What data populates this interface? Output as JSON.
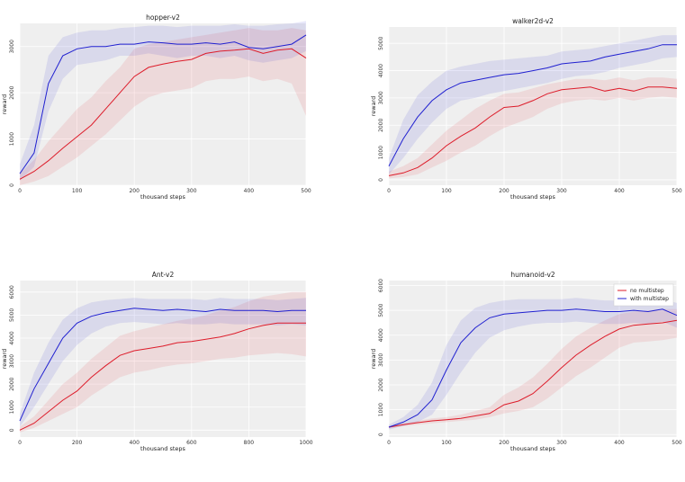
{
  "chart_data": [
    {
      "type": "line",
      "title": "hopper-v2",
      "xlabel": "thousand steps",
      "ylabel": "reward",
      "xlim": [
        0,
        500
      ],
      "ylim": [
        0,
        3500
      ],
      "xticks": [
        0,
        100,
        200,
        300,
        400,
        500
      ],
      "yticks": [
        0,
        1000,
        2000,
        3000
      ],
      "grid": true,
      "series": [
        {
          "color": "#dd1c2a",
          "x": [
            0,
            25,
            50,
            75,
            100,
            125,
            150,
            175,
            200,
            225,
            250,
            275,
            300,
            325,
            350,
            375,
            400,
            425,
            450,
            475,
            500
          ],
          "values": [
            130,
            300,
            530,
            800,
            1050,
            1300,
            1650,
            2000,
            2350,
            2550,
            2620,
            2680,
            2720,
            2850,
            2900,
            2920,
            2950,
            2850,
            2920,
            2950,
            2750
          ],
          "band_low": [
            0,
            80,
            200,
            400,
            600,
            850,
            1100,
            1400,
            1700,
            1900,
            2000,
            2050,
            2100,
            2250,
            2300,
            2300,
            2350,
            2250,
            2300,
            2200,
            1500
          ],
          "band_high": [
            250,
            550,
            950,
            1300,
            1650,
            1900,
            2250,
            2550,
            2950,
            3050,
            3100,
            3150,
            3200,
            3250,
            3300,
            3350,
            3400,
            3350,
            3350,
            3400,
            3350
          ]
        },
        {
          "color": "#2020d0",
          "x": [
            0,
            25,
            50,
            75,
            100,
            125,
            150,
            175,
            200,
            225,
            250,
            275,
            300,
            325,
            350,
            375,
            400,
            425,
            450,
            475,
            500
          ],
          "values": [
            250,
            700,
            2200,
            2800,
            2950,
            3000,
            3000,
            3050,
            3050,
            3100,
            3080,
            3050,
            3050,
            3080,
            3050,
            3100,
            2980,
            2950,
            3000,
            3050,
            3250
          ],
          "band_low": [
            100,
            400,
            1600,
            2300,
            2600,
            2650,
            2700,
            2800,
            2800,
            2850,
            2800,
            2750,
            2800,
            2800,
            2750,
            2800,
            2700,
            2650,
            2700,
            2750,
            2900
          ],
          "band_high": [
            450,
            1300,
            2800,
            3200,
            3300,
            3350,
            3350,
            3400,
            3420,
            3450,
            3450,
            3420,
            3450,
            3450,
            3450,
            3480,
            3450,
            3450,
            3480,
            3500,
            3550
          ]
        }
      ]
    },
    {
      "type": "line",
      "title": "walker2d-v2",
      "xlabel": "thousand steps",
      "ylabel": "reward",
      "xlim": [
        0,
        500
      ],
      "ylim": [
        -200,
        5600
      ],
      "xticks": [
        0,
        100,
        200,
        300,
        400,
        500
      ],
      "yticks": [
        0,
        1000,
        2000,
        3000,
        4000,
        5000
      ],
      "grid": true,
      "series": [
        {
          "color": "#dd1c2a",
          "x": [
            0,
            25,
            50,
            75,
            100,
            125,
            150,
            175,
            200,
            225,
            250,
            275,
            300,
            325,
            350,
            375,
            400,
            425,
            450,
            475,
            500
          ],
          "values": [
            150,
            250,
            450,
            800,
            1250,
            1600,
            1900,
            2300,
            2650,
            2700,
            2900,
            3150,
            3300,
            3350,
            3400,
            3250,
            3350,
            3250,
            3400,
            3400,
            3350
          ],
          "band_low": [
            50,
            100,
            200,
            450,
            700,
            1000,
            1250,
            1600,
            1900,
            2100,
            2300,
            2600,
            2800,
            2900,
            2950,
            2900,
            3000,
            2900,
            3000,
            3050,
            3000
          ],
          "band_high": [
            300,
            500,
            800,
            1300,
            1800,
            2200,
            2600,
            2900,
            3150,
            3200,
            3350,
            3500,
            3600,
            3700,
            3700,
            3650,
            3750,
            3650,
            3750,
            3750,
            3700
          ]
        },
        {
          "color": "#2020d0",
          "x": [
            0,
            25,
            50,
            75,
            100,
            125,
            150,
            175,
            200,
            225,
            250,
            275,
            300,
            325,
            350,
            375,
            400,
            425,
            450,
            475,
            500
          ],
          "values": [
            500,
            1500,
            2300,
            2900,
            3300,
            3550,
            3650,
            3750,
            3850,
            3900,
            4000,
            4100,
            4250,
            4300,
            4350,
            4500,
            4600,
            4700,
            4800,
            4950,
            4950
          ],
          "band_low": [
            200,
            800,
            1500,
            2100,
            2600,
            2900,
            3000,
            3150,
            3250,
            3350,
            3450,
            3550,
            3700,
            3800,
            3850,
            3950,
            4100,
            4200,
            4300,
            4450,
            4500
          ],
          "band_high": [
            800,
            2200,
            3100,
            3600,
            4000,
            4150,
            4250,
            4350,
            4400,
            4450,
            4500,
            4550,
            4700,
            4750,
            4800,
            4900,
            5000,
            5100,
            5200,
            5300,
            5300
          ]
        }
      ]
    },
    {
      "type": "line",
      "title": "Ant-v2",
      "xlabel": "thousand steps",
      "ylabel": "reward",
      "xlim": [
        0,
        1000
      ],
      "ylim": [
        -300,
        6500
      ],
      "xticks": [
        0,
        200,
        400,
        600,
        800,
        1000
      ],
      "yticks": [
        0,
        1000,
        2000,
        3000,
        4000,
        5000,
        6000
      ],
      "grid": true,
      "series": [
        {
          "color": "#dd1c2a",
          "x": [
            0,
            50,
            100,
            150,
            200,
            250,
            300,
            350,
            400,
            450,
            500,
            550,
            600,
            650,
            700,
            750,
            800,
            850,
            900,
            950,
            1000
          ],
          "values": [
            0,
            300,
            800,
            1300,
            1700,
            2300,
            2800,
            3250,
            3450,
            3550,
            3650,
            3800,
            3850,
            3950,
            4050,
            4200,
            4400,
            4550,
            4650,
            4650,
            4650
          ],
          "band_low": [
            -100,
            100,
            400,
            700,
            1000,
            1500,
            1900,
            2300,
            2500,
            2600,
            2750,
            2850,
            2900,
            3000,
            3100,
            3150,
            3250,
            3300,
            3350,
            3300,
            3200
          ],
          "band_high": [
            150,
            600,
            1300,
            2000,
            2500,
            3100,
            3600,
            4100,
            4300,
            4450,
            4600,
            4750,
            4850,
            5000,
            5200,
            5350,
            5600,
            5800,
            5900,
            6000,
            6000
          ]
        },
        {
          "color": "#2020d0",
          "x": [
            0,
            50,
            100,
            150,
            200,
            250,
            300,
            350,
            400,
            450,
            500,
            550,
            600,
            650,
            700,
            750,
            800,
            850,
            900,
            950,
            1000
          ],
          "values": [
            400,
            1800,
            2900,
            4000,
            4650,
            4950,
            5100,
            5200,
            5300,
            5250,
            5200,
            5250,
            5200,
            5150,
            5250,
            5200,
            5200,
            5200,
            5150,
            5200,
            5200
          ],
          "band_low": [
            150,
            1000,
            2000,
            3000,
            3700,
            4200,
            4500,
            4650,
            4700,
            4650,
            4600,
            4650,
            4600,
            4600,
            4650,
            4600,
            4600,
            4600,
            4550,
            4600,
            4550
          ],
          "band_high": [
            700,
            2500,
            3800,
            4800,
            5300,
            5550,
            5650,
            5700,
            5750,
            5700,
            5700,
            5700,
            5700,
            5650,
            5750,
            5700,
            5700,
            5700,
            5650,
            5700,
            5750
          ]
        }
      ]
    },
    {
      "type": "line",
      "title": "humanoid-v2",
      "xlabel": "thousand steps",
      "ylabel": "reward",
      "xlim": [
        0,
        500
      ],
      "ylim": [
        -100,
        6200
      ],
      "xticks": [
        0,
        100,
        200,
        300,
        400,
        500
      ],
      "yticks": [
        0,
        1000,
        2000,
        3000,
        4000,
        5000,
        6000
      ],
      "grid": true,
      "legend": "top-right",
      "series": [
        {
          "name": "no multistep",
          "color": "#dd1c2a",
          "x": [
            0,
            25,
            50,
            75,
            100,
            125,
            150,
            175,
            200,
            225,
            250,
            275,
            300,
            325,
            350,
            375,
            400,
            425,
            450,
            475,
            500
          ],
          "values": [
            300,
            400,
            480,
            550,
            600,
            650,
            750,
            850,
            1200,
            1350,
            1650,
            2150,
            2700,
            3200,
            3600,
            3950,
            4250,
            4400,
            4450,
            4500,
            4600
          ],
          "band_low": [
            250,
            330,
            400,
            450,
            500,
            550,
            600,
            700,
            850,
            950,
            1100,
            1450,
            1900,
            2350,
            2700,
            3100,
            3500,
            3700,
            3750,
            3800,
            3900
          ],
          "band_high": [
            350,
            450,
            550,
            650,
            700,
            800,
            950,
            1100,
            1600,
            1900,
            2300,
            2850,
            3450,
            3950,
            4300,
            4600,
            4850,
            4950,
            5000,
            5050,
            5050
          ]
        },
        {
          "name": "with multistep",
          "color": "#2020d0",
          "x": [
            0,
            25,
            50,
            75,
            100,
            125,
            150,
            175,
            200,
            225,
            250,
            275,
            300,
            325,
            350,
            375,
            400,
            425,
            450,
            475,
            500
          ],
          "values": [
            300,
            500,
            800,
            1400,
            2600,
            3700,
            4300,
            4700,
            4850,
            4900,
            4950,
            5000,
            5000,
            5050,
            5000,
            4950,
            4950,
            5000,
            4950,
            5050,
            4800
          ],
          "band_low": [
            200,
            350,
            500,
            800,
            1600,
            2500,
            3300,
            3900,
            4200,
            4350,
            4450,
            4500,
            4500,
            4550,
            4500,
            4450,
            4450,
            4500,
            4450,
            4550,
            4300
          ],
          "band_high": [
            400,
            700,
            1200,
            2100,
            3600,
            4600,
            5100,
            5300,
            5400,
            5450,
            5450,
            5450,
            5450,
            5500,
            5450,
            5400,
            5400,
            5450,
            5400,
            5450,
            5300
          ]
        }
      ]
    }
  ]
}
